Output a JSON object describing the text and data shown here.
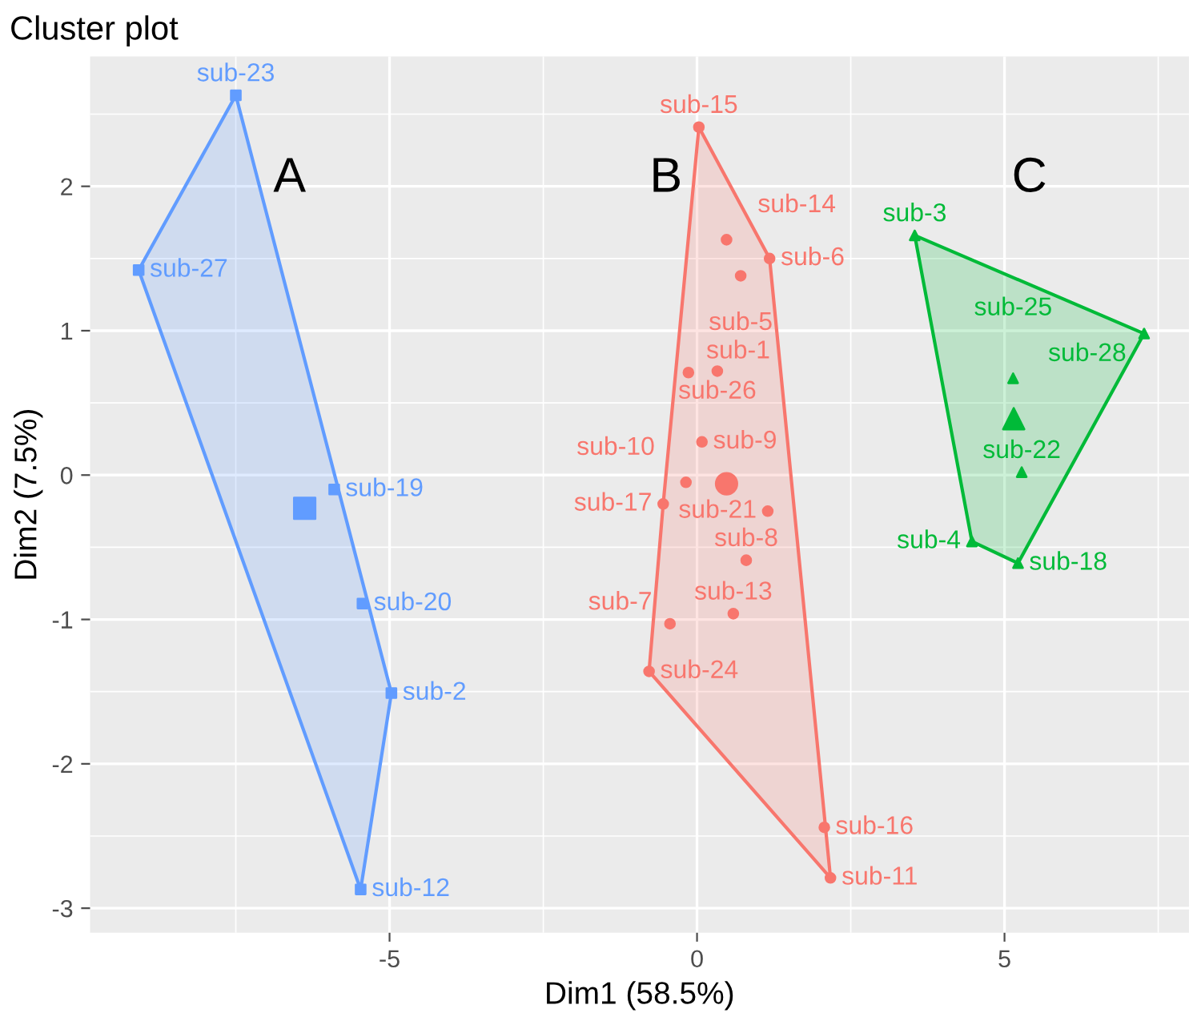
{
  "chart_data": {
    "type": "scatter",
    "title": "Cluster plot",
    "xlabel": "Dim1 (58.5%)",
    "ylabel": "Dim2 (7.5%)",
    "xlim": [
      -9.87,
      8.0
    ],
    "ylim": [
      -3.17,
      2.9
    ],
    "xticks": [
      -5,
      0,
      5
    ],
    "yticks": [
      -3,
      -2,
      -1,
      0,
      1,
      2
    ],
    "grid": true,
    "legend": false,
    "series": [
      {
        "color": "#619cff",
        "marker": "square",
        "x": [
          -7.5,
          -9.08,
          -5.9,
          -5.44,
          -4.97,
          -5.47
        ],
        "values": [
          2.63,
          1.42,
          -0.1,
          -0.89,
          -1.51,
          -2.87
        ],
        "value_labels": [
          "sub-23",
          "sub-27",
          "sub-19",
          "sub-20",
          "sub-2",
          "sub-12"
        ]
      },
      {
        "color": "#f8766d",
        "marker": "circle",
        "x": [
          0.03,
          0.48,
          1.18,
          0.71,
          -0.14,
          0.33,
          0.08,
          -0.18,
          -0.55,
          1.15,
          0.8,
          0.59,
          -0.44,
          -0.78,
          2.07,
          2.17
        ],
        "values": [
          2.41,
          1.63,
          1.5,
          1.38,
          0.71,
          0.72,
          0.23,
          -0.05,
          -0.2,
          -0.25,
          -0.59,
          -0.96,
          -1.03,
          -1.36,
          -2.44,
          -2.79
        ],
        "value_labels": [
          "sub-15",
          "sub-14",
          "sub-6",
          "sub-5",
          "sub-1",
          "sub-26",
          "sub-9",
          "sub-10",
          "sub-17",
          "sub-21",
          "sub-8",
          "sub-13",
          "sub-7",
          "sub-24",
          "sub-16",
          "sub-11"
        ]
      },
      {
        "color": "#00ba38",
        "marker": "triangle",
        "x": [
          3.54,
          7.27,
          5.14,
          5.28,
          4.47,
          5.22
        ],
        "values": [
          1.66,
          0.98,
          0.67,
          0.02,
          -0.46,
          -0.61
        ],
        "value_labels": [
          "sub-3",
          "sub-28",
          "sub-25",
          "sub-22",
          "sub-4",
          "sub-18"
        ]
      },
      {
        "color": "#619cff",
        "marker": "square",
        "x": [
          -6.38
        ],
        "values": [
          -0.23
        ]
      },
      {
        "color": "#f8766d",
        "marker": "circle",
        "x": [
          0.48
        ],
        "values": [
          -0.06
        ]
      },
      {
        "color": "#00ba38",
        "marker": "triangle",
        "x": [
          5.15
        ],
        "values": [
          0.39
        ]
      }
    ],
    "annotations": [
      "A",
      "B",
      "C"
    ]
  }
}
